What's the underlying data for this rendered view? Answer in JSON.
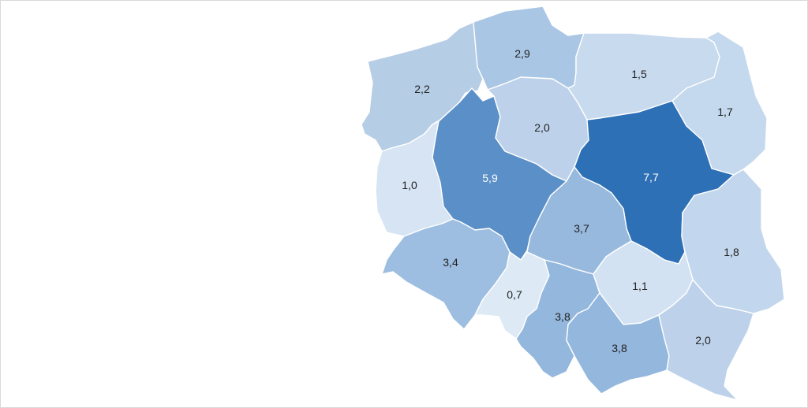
{
  "colors": {
    "background": "#ffffff",
    "border": "#d9d9d9",
    "label_dark": "#222222",
    "label_light": "#ffffff"
  },
  "regions": [
    {
      "id": "zachodniopomorskie",
      "label": "2,2",
      "value": 2.2,
      "fill": "#b6cde6",
      "text": "dark"
    },
    {
      "id": "pomorskie",
      "label": "2,9",
      "value": 2.9,
      "fill": "#a9c6e4",
      "text": "dark"
    },
    {
      "id": "warminsko-mazurskie",
      "label": "1,5",
      "value": 1.5,
      "fill": "#c8daee",
      "text": "dark"
    },
    {
      "id": "podlaskie",
      "label": "1,7",
      "value": 1.7,
      "fill": "#c4d8ee",
      "text": "dark"
    },
    {
      "id": "lubuskie",
      "label": "1,0",
      "value": 1.0,
      "fill": "#d6e4f3",
      "text": "dark"
    },
    {
      "id": "wielkopolskie",
      "label": "5,9",
      "value": 5.9,
      "fill": "#5b8fc7",
      "text": "light"
    },
    {
      "id": "kujawsko-pomorskie",
      "label": "2,0",
      "value": 2.0,
      "fill": "#bdd2ea",
      "text": "dark"
    },
    {
      "id": "mazowieckie",
      "label": "7,7",
      "value": 7.7,
      "fill": "#2e70b6",
      "text": "light"
    },
    {
      "id": "lodzkie",
      "label": "3,7",
      "value": 3.7,
      "fill": "#97b9de",
      "text": "dark"
    },
    {
      "id": "lubelskie",
      "label": "1,8",
      "value": 1.8,
      "fill": "#c2d7ed",
      "text": "dark"
    },
    {
      "id": "dolnoslaskie",
      "label": "3,4",
      "value": 3.4,
      "fill": "#9dbee1",
      "text": "dark"
    },
    {
      "id": "opolskie",
      "label": "0,7",
      "value": 0.7,
      "fill": "#dde9f5",
      "text": "dark"
    },
    {
      "id": "slaskie",
      "label": "3,8",
      "value": 3.8,
      "fill": "#94b7dd",
      "text": "dark"
    },
    {
      "id": "swietokrzyskie",
      "label": "1,1",
      "value": 1.1,
      "fill": "#d3e2f2",
      "text": "dark"
    },
    {
      "id": "malopolskie",
      "label": "3,8",
      "value": 3.8,
      "fill": "#94b7dd",
      "text": "dark"
    },
    {
      "id": "podkarpackie",
      "label": "2,0",
      "value": 2.0,
      "fill": "#bdd2ea",
      "text": "dark"
    }
  ]
}
